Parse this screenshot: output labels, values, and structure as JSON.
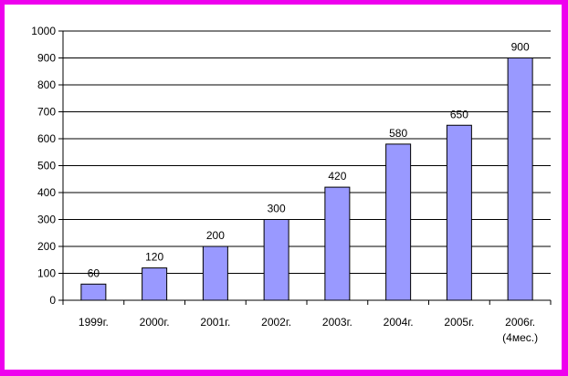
{
  "colors": {
    "border": "#ee00ee",
    "bar": "#9999ff",
    "bar_stroke": "#000000",
    "grid": "#000000",
    "background": "#ffffff"
  },
  "chart_data": {
    "type": "bar",
    "categories": [
      "1999г.",
      "2000г.",
      "2001г.",
      "2002г.",
      "2003г.",
      "2004г.",
      "2005г.",
      "2006г. (4мес.)"
    ],
    "category_lines": [
      [
        "1999г."
      ],
      [
        "2000г."
      ],
      [
        "2001г."
      ],
      [
        "2002г."
      ],
      [
        "2003г."
      ],
      [
        "2004г."
      ],
      [
        "2005г."
      ],
      [
        "2006г.",
        "(4мес.)"
      ]
    ],
    "values": [
      60,
      120,
      200,
      300,
      420,
      580,
      650,
      900
    ],
    "data_labels": [
      "60",
      "120",
      "200",
      "300",
      "420",
      "580",
      "650",
      "900"
    ],
    "title": "",
    "xlabel": "",
    "ylabel": "",
    "ylim": [
      0,
      1000
    ],
    "yticks": [
      0,
      100,
      200,
      300,
      400,
      500,
      600,
      700,
      800,
      900,
      1000
    ],
    "grid": true,
    "legend": "none"
  }
}
